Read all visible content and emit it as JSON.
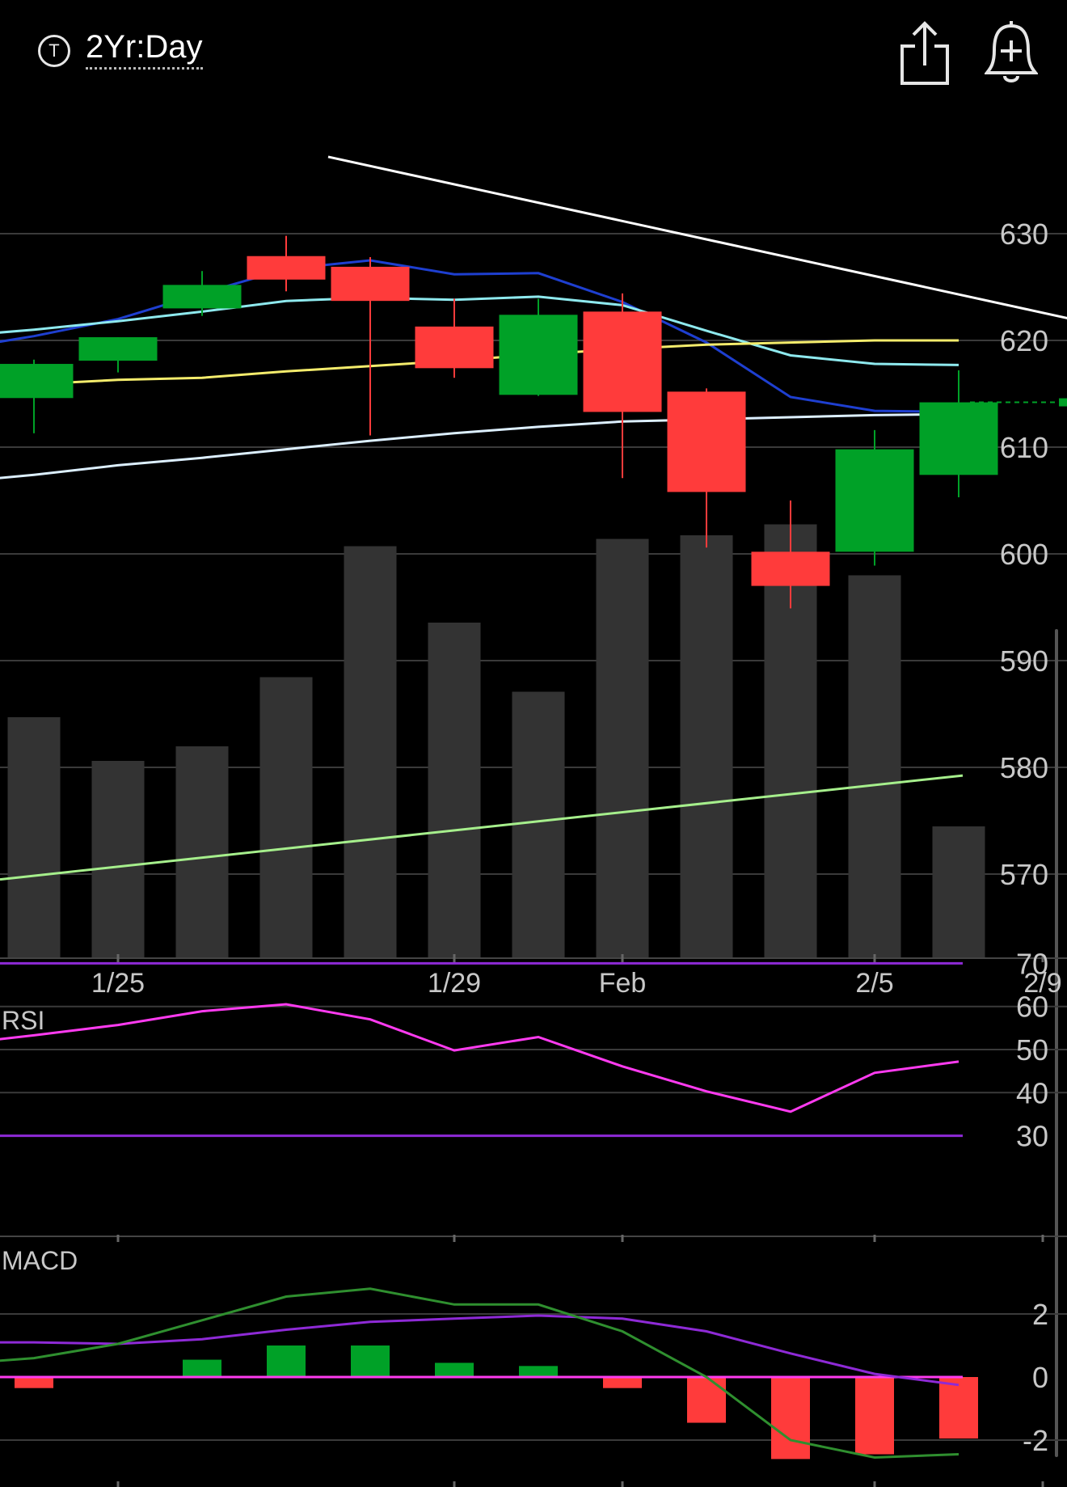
{
  "header": {
    "timeframe_label": "2Yr:Day",
    "timeframe_icon": "T",
    "icons": [
      "timeframe-icon",
      "share-icon",
      "alert-add-icon"
    ]
  },
  "colors": {
    "up": "#00a127",
    "down": "#ff3b3b",
    "volume": "#333333",
    "ma_blue": "#1e3fd0",
    "ma_cyan": "#8ee9ee",
    "ma_yellow": "#f4ec6c",
    "ma_white": "#dcefff",
    "volume_ma": "#a6ef8c",
    "trendline": "#ffffff",
    "rsi": "#ff3bf0",
    "rsi_band": "#8e2ad6",
    "macd": "#2f8f2f",
    "macd_signal": "#8e2ad6",
    "macd_zero": "#ff3bf0"
  },
  "chart_data": [
    {
      "type": "candlestick",
      "panel": "price",
      "y_ticks": [
        "630",
        "620",
        "610",
        "600",
        "590",
        "580",
        "570"
      ],
      "x_ticks": [
        {
          "label": "1/25",
          "index": 1
        },
        {
          "label": "1/29",
          "index": 5
        },
        {
          "label": "Feb",
          "index": 7
        },
        {
          "label": "2/5",
          "index": 10
        },
        {
          "label": "2/9",
          "index": 12
        }
      ],
      "ylim": [
        562.3,
        641.1
      ],
      "candles": [
        {
          "o": 614.6,
          "h": 618.2,
          "l": 611.3,
          "c": 617.8
        },
        {
          "o": 618.1,
          "h": 620.3,
          "l": 617.0,
          "c": 620.3
        },
        {
          "o": 623.0,
          "h": 626.5,
          "l": 622.3,
          "c": 625.2
        },
        {
          "o": 627.9,
          "h": 629.8,
          "l": 624.6,
          "c": 625.7
        },
        {
          "o": 626.9,
          "h": 627.8,
          "l": 611.1,
          "c": 623.7
        },
        {
          "o": 621.3,
          "h": 623.9,
          "l": 616.5,
          "c": 617.4
        },
        {
          "o": 614.9,
          "h": 623.9,
          "l": 614.8,
          "c": 622.4
        },
        {
          "o": 622.7,
          "h": 624.4,
          "l": 607.1,
          "c": 613.3
        },
        {
          "o": 615.2,
          "h": 615.5,
          "l": 600.6,
          "c": 605.8
        },
        {
          "o": 600.2,
          "h": 605.0,
          "l": 594.9,
          "c": 597.0
        },
        {
          "o": 600.2,
          "h": 611.6,
          "l": 598.9,
          "c": 609.8
        },
        {
          "o": 607.4,
          "h": 617.2,
          "l": 605.3,
          "c": 614.2
        }
      ],
      "last_price": 614.2,
      "overlays": [
        {
          "name": "",
          "color": "ma_blue",
          "values": [
            620.4,
            622.0,
            624.4,
            626.7,
            627.5,
            626.2,
            626.3,
            623.6,
            619.8,
            614.7,
            613.4,
            613.3
          ]
        },
        {
          "name": "",
          "color": "ma_cyan",
          "values": [
            621.0,
            621.8,
            622.7,
            623.7,
            624.0,
            623.8,
            624.1,
            623.3,
            620.9,
            618.6,
            617.8,
            617.7
          ]
        },
        {
          "name": "",
          "color": "ma_yellow",
          "values": [
            615.9,
            616.3,
            616.5,
            617.1,
            617.6,
            618.1,
            618.7,
            619.2,
            619.6,
            619.8,
            620.0,
            620.0
          ]
        },
        {
          "name": "",
          "color": "ma_white",
          "values": [
            607.4,
            608.3,
            609.0,
            609.8,
            610.6,
            611.3,
            611.9,
            612.4,
            612.6,
            612.8,
            613.0,
            613.1
          ]
        }
      ],
      "trendline": {
        "from": {
          "index": 3.5,
          "value": 637.2
        },
        "to": {
          "index": 12.75,
          "value": 621.3
        }
      }
    },
    {
      "type": "bar",
      "panel": "volume",
      "values": [
        66,
        54,
        58,
        77,
        113,
        92,
        73,
        115,
        116,
        119,
        105,
        36
      ],
      "ma": {
        "name": "",
        "color": "volume_ma",
        "from": 21,
        "to": 49
      }
    },
    {
      "type": "line",
      "panel": "rsi",
      "title": "RSI",
      "y_ticks": [
        "70",
        "60",
        "50",
        "40",
        "30"
      ],
      "bands": [
        70,
        30
      ],
      "values": [
        53.3,
        55.7,
        58.9,
        60.5,
        57.0,
        49.8,
        52.9,
        46.1,
        40.3,
        35.6,
        44.6,
        47.2
      ]
    },
    {
      "type": "bar",
      "panel": "macd",
      "title": "MACD",
      "y_ticks": [
        "2",
        "0",
        "-2"
      ],
      "histogram": [
        -0.35,
        0.0,
        0.55,
        1.0,
        1.0,
        0.45,
        0.35,
        -0.35,
        -1.45,
        -2.6,
        -2.45,
        -1.95
      ],
      "macd": [
        0.6,
        1.05,
        1.8,
        2.55,
        2.8,
        2.3,
        2.3,
        1.45,
        0.0,
        -2.0,
        -2.55,
        -2.45
      ],
      "signal": [
        1.1,
        1.05,
        1.2,
        1.5,
        1.75,
        1.85,
        1.95,
        1.85,
        1.45,
        0.75,
        0.1,
        -0.25
      ]
    }
  ]
}
